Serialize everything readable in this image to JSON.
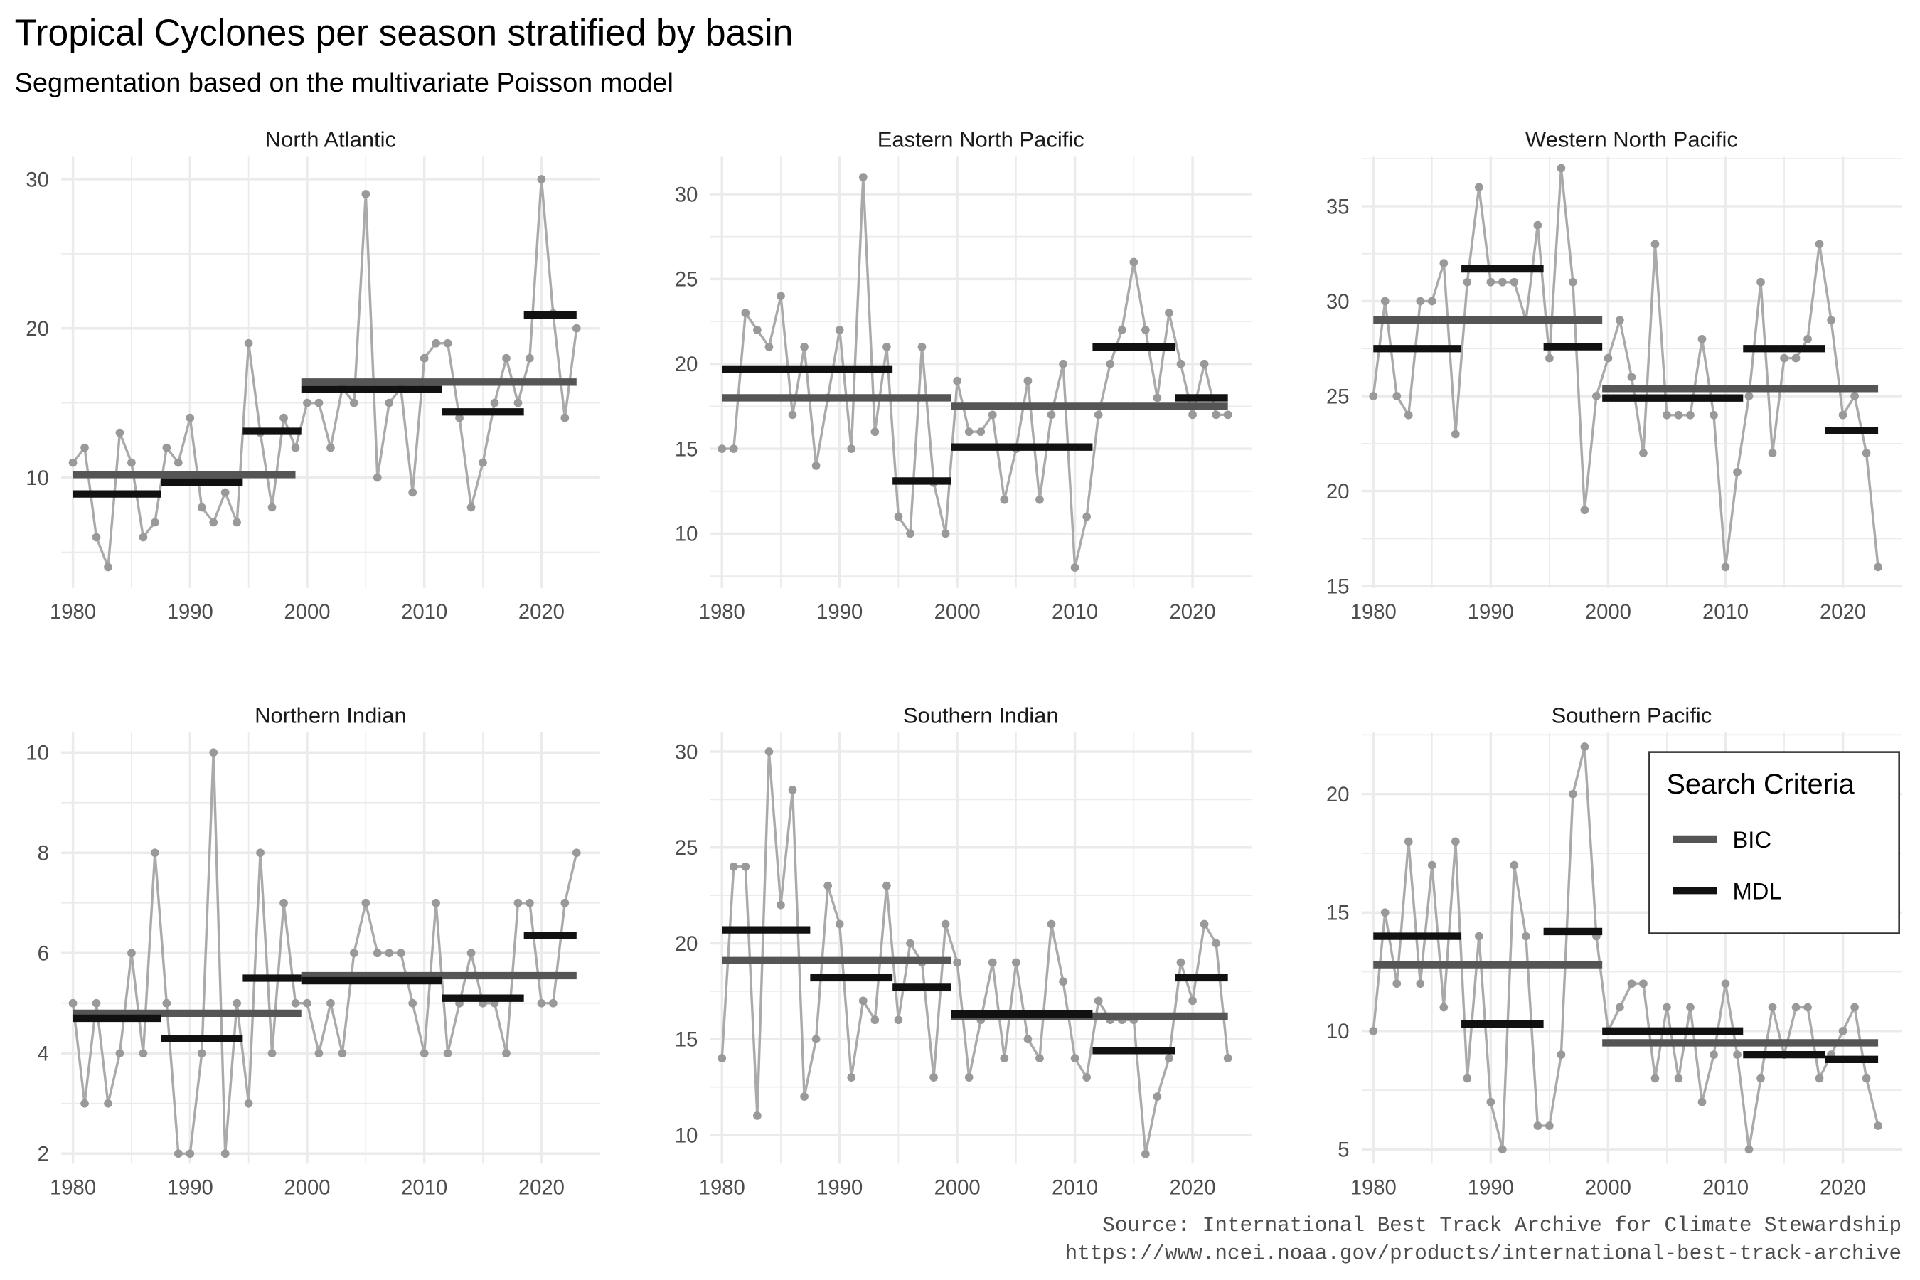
{
  "title": "Tropical Cyclones per season stratified by basin",
  "subtitle": "Segmentation based on the multivariate Poisson model",
  "caption": [
    "Source: International Best Track Archive for Climate Stewardship",
    "https://www.ncei.noaa.gov/products/international-best-track-archive"
  ],
  "legend": {
    "title": "Search Criteria",
    "items": [
      {
        "label": "BIC",
        "color": "#555555"
      },
      {
        "label": "MDL",
        "color": "#111111"
      }
    ]
  },
  "colors": {
    "series": "#aaaaaa",
    "point": "#999999",
    "grid": "#ebebeb",
    "bic": "#555555",
    "mdl": "#111111"
  },
  "chart_data": {
    "type": "line",
    "x_start": 1980,
    "x_ticks": [
      1980,
      1990,
      2000,
      2010,
      2020
    ],
    "xlim": [
      1979,
      2025
    ],
    "panels": [
      {
        "name": "North Atlantic",
        "ylim": [
          2.6,
          31.5
        ],
        "y_ticks": [
          10,
          20,
          30
        ],
        "values": [
          11,
          12,
          6,
          4,
          13,
          11,
          6,
          7,
          12,
          11,
          14,
          8,
          7,
          9,
          7,
          19,
          13,
          8,
          14,
          12,
          15,
          15,
          12,
          16,
          15,
          29,
          10,
          15,
          16,
          9,
          18,
          19,
          19,
          14,
          8,
          11,
          15,
          18,
          15,
          18,
          30,
          21,
          14,
          20
        ],
        "bic": [
          {
            "start": 1980,
            "end": 1999,
            "mean": 10.2
          },
          {
            "start": 1999.5,
            "end": 2023,
            "mean": 16.4
          }
        ],
        "mdl": [
          {
            "start": 1980,
            "end": 1987.5,
            "mean": 8.9
          },
          {
            "start": 1987.5,
            "end": 1994.5,
            "mean": 9.7
          },
          {
            "start": 1994.5,
            "end": 1999.5,
            "mean": 13.1
          },
          {
            "start": 1999.5,
            "end": 2011.5,
            "mean": 15.9
          },
          {
            "start": 2011.5,
            "end": 2018.5,
            "mean": 14.4
          },
          {
            "start": 2018.5,
            "end": 2023,
            "mean": 20.9
          }
        ]
      },
      {
        "name": "Eastern North Pacific",
        "ylim": [
          6.8,
          32.2
        ],
        "y_ticks": [
          10,
          15,
          20,
          25,
          30
        ],
        "values": [
          15,
          15,
          23,
          22,
          21,
          24,
          17,
          21,
          14,
          18,
          22,
          15,
          31,
          16,
          21,
          11,
          10,
          21,
          13,
          10,
          19,
          16,
          16,
          17,
          12,
          15,
          19,
          12,
          17,
          20,
          8,
          11,
          17,
          20,
          22,
          26,
          22,
          18,
          23,
          20,
          17,
          20,
          17,
          17
        ],
        "bic": [
          {
            "start": 1980,
            "end": 1999.5,
            "mean": 18.0
          },
          {
            "start": 1999.5,
            "end": 2023,
            "mean": 17.5
          }
        ],
        "mdl": [
          {
            "start": 1980,
            "end": 1994.5,
            "mean": 19.7
          },
          {
            "start": 1994.5,
            "end": 1999.5,
            "mean": 13.1
          },
          {
            "start": 1999.5,
            "end": 2011.5,
            "mean": 15.1
          },
          {
            "start": 2011.5,
            "end": 2018.5,
            "mean": 21.0
          },
          {
            "start": 2018.5,
            "end": 2023,
            "mean": 18.0
          }
        ]
      },
      {
        "name": "Western North Pacific",
        "ylim": [
          14.9,
          37.6
        ],
        "y_ticks": [
          15,
          20,
          25,
          30,
          35
        ],
        "values": [
          25,
          30,
          25,
          24,
          30,
          30,
          32,
          23,
          31,
          36,
          31,
          31,
          31,
          29,
          34,
          27,
          37,
          31,
          19,
          25,
          27,
          29,
          26,
          22,
          33,
          24,
          24,
          24,
          28,
          24,
          16,
          21,
          25,
          31,
          22,
          27,
          27,
          28,
          33,
          29,
          24,
          25,
          22,
          16
        ],
        "bic": [
          {
            "start": 1980,
            "end": 1999.5,
            "mean": 29.0
          },
          {
            "start": 1999.5,
            "end": 2023,
            "mean": 25.4
          }
        ],
        "mdl": [
          {
            "start": 1980,
            "end": 1987.5,
            "mean": 27.5
          },
          {
            "start": 1987.5,
            "end": 1994.5,
            "mean": 31.7
          },
          {
            "start": 1994.5,
            "end": 1999.5,
            "mean": 27.6
          },
          {
            "start": 1999.5,
            "end": 2011.5,
            "mean": 24.9
          },
          {
            "start": 2011.5,
            "end": 2018.5,
            "mean": 27.5
          },
          {
            "start": 2018.5,
            "end": 2023,
            "mean": 23.2
          }
        ]
      },
      {
        "name": "Northern Indian",
        "ylim": [
          1.8,
          10.4
        ],
        "y_ticks": [
          2,
          4,
          6,
          8,
          10
        ],
        "values": [
          5,
          3,
          5,
          3,
          4,
          6,
          4,
          8,
          5,
          2,
          2,
          4,
          10,
          2,
          5,
          3,
          8,
          4,
          7,
          5,
          5,
          4,
          5,
          4,
          6,
          7,
          6,
          6,
          6,
          5,
          4,
          7,
          4,
          5,
          6,
          5,
          5,
          4,
          7,
          7,
          5,
          5,
          7,
          8
        ],
        "bic": [
          {
            "start": 1980,
            "end": 1999.5,
            "mean": 4.8
          },
          {
            "start": 1999.5,
            "end": 2023,
            "mean": 5.55
          }
        ],
        "mdl": [
          {
            "start": 1980,
            "end": 1987.5,
            "mean": 4.7
          },
          {
            "start": 1987.5,
            "end": 1994.5,
            "mean": 4.3
          },
          {
            "start": 1994.5,
            "end": 1999.5,
            "mean": 5.5
          },
          {
            "start": 1999.5,
            "end": 2011.5,
            "mean": 5.45
          },
          {
            "start": 2011.5,
            "end": 2018.5,
            "mean": 5.1
          },
          {
            "start": 2018.5,
            "end": 2023,
            "mean": 6.35
          }
        ]
      },
      {
        "name": "Southern Indian",
        "ylim": [
          8.5,
          31.0
        ],
        "y_ticks": [
          10,
          15,
          20,
          25,
          30
        ],
        "values": [
          14,
          24,
          24,
          11,
          30,
          22,
          28,
          12,
          15,
          23,
          21,
          13,
          17,
          16,
          23,
          16,
          20,
          19,
          13,
          21,
          19,
          13,
          16,
          19,
          14,
          19,
          15,
          14,
          21,
          18,
          14,
          13,
          17,
          16,
          16,
          16,
          9,
          12,
          14,
          19,
          17,
          21,
          20,
          14
        ],
        "bic": [
          {
            "start": 1980,
            "end": 1999.5,
            "mean": 19.1
          },
          {
            "start": 1999.5,
            "end": 2023,
            "mean": 16.2
          }
        ],
        "mdl": [
          {
            "start": 1980,
            "end": 1987.5,
            "mean": 20.7
          },
          {
            "start": 1987.5,
            "end": 1994.5,
            "mean": 18.2
          },
          {
            "start": 1994.5,
            "end": 1999.5,
            "mean": 17.7
          },
          {
            "start": 1999.5,
            "end": 2011.5,
            "mean": 16.3
          },
          {
            "start": 2011.5,
            "end": 2018.5,
            "mean": 14.4
          },
          {
            "start": 2018.5,
            "end": 2023,
            "mean": 18.2
          }
        ]
      },
      {
        "name": "Southern Pacific",
        "ylim": [
          4.4,
          22.6
        ],
        "y_ticks": [
          5,
          10,
          15,
          20
        ],
        "values": [
          10,
          15,
          12,
          18,
          12,
          17,
          11,
          18,
          8,
          14,
          7,
          5,
          17,
          14,
          6,
          6,
          9,
          20,
          22,
          14,
          10,
          11,
          12,
          12,
          8,
          11,
          8,
          11,
          7,
          9,
          12,
          9,
          5,
          8,
          11,
          9,
          11,
          11,
          8,
          9,
          10,
          11,
          8,
          6
        ],
        "bic": [
          {
            "start": 1980,
            "end": 1999.5,
            "mean": 12.8
          },
          {
            "start": 1999.5,
            "end": 2023,
            "mean": 9.5
          }
        ],
        "mdl": [
          {
            "start": 1980,
            "end": 1987.5,
            "mean": 14.0
          },
          {
            "start": 1987.5,
            "end": 1994.5,
            "mean": 10.3
          },
          {
            "start": 1994.5,
            "end": 1999.5,
            "mean": 14.2
          },
          {
            "start": 1999.5,
            "end": 2011.5,
            "mean": 10.0
          },
          {
            "start": 2011.5,
            "end": 2018.5,
            "mean": 9.0
          },
          {
            "start": 2018.5,
            "end": 2023,
            "mean": 8.8
          }
        ]
      }
    ],
    "xlabel": "",
    "ylabel": "",
    "grid": true,
    "legend_position": "inside top-right of last panel"
  }
}
